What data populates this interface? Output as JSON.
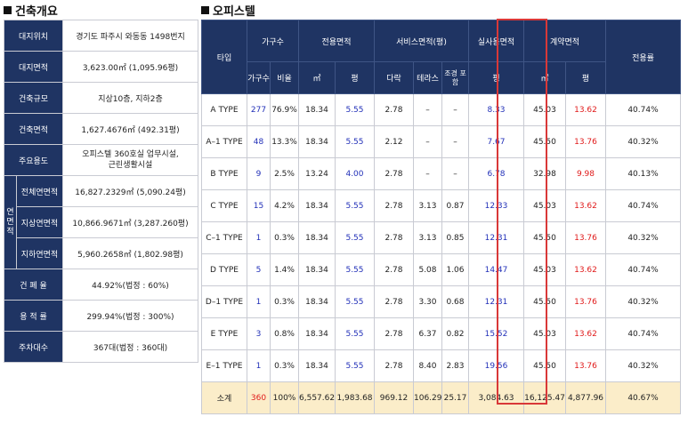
{
  "overview": {
    "title": "건축개요",
    "rows": [
      {
        "label": "대지위치",
        "value": "경기도 파주시 와동동 1498번지"
      },
      {
        "label": "대지면적",
        "value": "3,623.00㎡ (1,095.96평)"
      },
      {
        "label": "건축규모",
        "value": "지상10층, 지하2층"
      },
      {
        "label": "건축면적",
        "value": "1,627.4676㎡ (492.31평)"
      },
      {
        "label": "주요용도",
        "value": "오피스텔 360호실 업무시설, 근린생활시설"
      }
    ],
    "area_group_label": "연면적",
    "area_rows": [
      {
        "label": "전체연면적",
        "value": "16,827.2329㎡ (5,090.24평)"
      },
      {
        "label": "지상연면적",
        "value": "10,866.9671㎡ (3,287.260평)"
      },
      {
        "label": "지하연면적",
        "value": "5,960.2658㎡ (1,802.98평)"
      }
    ],
    "bottom_rows": [
      {
        "label": "건 폐 율",
        "value": "44.92%(법정 : 60%)"
      },
      {
        "label": "용 적 률",
        "value": "299.94%(법정 : 300%)"
      },
      {
        "label": "주차대수",
        "value": "367대(법정 : 360대)"
      }
    ]
  },
  "officetel": {
    "title": "오피스텔",
    "headers": {
      "type": "타입",
      "units": "가구수",
      "exclusive_area": "전용면적",
      "service_area": "서비스면적(평)",
      "actual_area": "실사용면적",
      "contract_area": "계약면적",
      "exclusive_ratio": "전용률",
      "sub": {
        "count": "가구수",
        "ratio": "비율",
        "sqm": "㎡",
        "pyeong": "평",
        "attic": "다락",
        "terrace": "테라스",
        "landscape": "조경 포함",
        "actual_pyeong": "평",
        "contract_sqm": "㎡",
        "contract_pyeong": "평"
      }
    },
    "rows": [
      {
        "type": "A TYPE",
        "count": "277",
        "ratio": "76.9%",
        "sqm": "18.34",
        "pyeong": "5.55",
        "attic": "2.78",
        "terrace": "–",
        "landscape": "–",
        "actual": "8.33",
        "c_sqm": "45.03",
        "c_pyeong": "13.62",
        "er": "40.74%"
      },
      {
        "type": "A–1 TYPE",
        "count": "48",
        "ratio": "13.3%",
        "sqm": "18.34",
        "pyeong": "5.55",
        "attic": "2.12",
        "terrace": "–",
        "landscape": "–",
        "actual": "7.67",
        "c_sqm": "45.50",
        "c_pyeong": "13.76",
        "er": "40.32%"
      },
      {
        "type": "B TYPE",
        "count": "9",
        "ratio": "2.5%",
        "sqm": "13.24",
        "pyeong": "4.00",
        "attic": "2.78",
        "terrace": "–",
        "landscape": "–",
        "actual": "6.78",
        "c_sqm": "32.98",
        "c_pyeong": "9.98",
        "er": "40.13%"
      },
      {
        "type": "C TYPE",
        "count": "15",
        "ratio": "4.2%",
        "sqm": "18.34",
        "pyeong": "5.55",
        "attic": "2.78",
        "terrace": "3.13",
        "landscape": "0.87",
        "actual": "12.33",
        "c_sqm": "45.03",
        "c_pyeong": "13.62",
        "er": "40.74%"
      },
      {
        "type": "C–1 TYPE",
        "count": "1",
        "ratio": "0.3%",
        "sqm": "18.34",
        "pyeong": "5.55",
        "attic": "2.78",
        "terrace": "3.13",
        "landscape": "0.85",
        "actual": "12.31",
        "c_sqm": "45.50",
        "c_pyeong": "13.76",
        "er": "40.32%"
      },
      {
        "type": "D TYPE",
        "count": "5",
        "ratio": "1.4%",
        "sqm": "18.34",
        "pyeong": "5.55",
        "attic": "2.78",
        "terrace": "5.08",
        "landscape": "1.06",
        "actual": "14.47",
        "c_sqm": "45.03",
        "c_pyeong": "13.62",
        "er": "40.74%"
      },
      {
        "type": "D–1 TYPE",
        "count": "1",
        "ratio": "0.3%",
        "sqm": "18.34",
        "pyeong": "5.55",
        "attic": "2.78",
        "terrace": "3.30",
        "landscape": "0.68",
        "actual": "12.31",
        "c_sqm": "45.50",
        "c_pyeong": "13.76",
        "er": "40.32%"
      },
      {
        "type": "E TYPE",
        "count": "3",
        "ratio": "0.8%",
        "sqm": "18.34",
        "pyeong": "5.55",
        "attic": "2.78",
        "terrace": "6.37",
        "landscape": "0.82",
        "actual": "15.52",
        "c_sqm": "45.03",
        "c_pyeong": "13.62",
        "er": "40.74%"
      },
      {
        "type": "E–1 TYPE",
        "count": "1",
        "ratio": "0.3%",
        "sqm": "18.34",
        "pyeong": "5.55",
        "attic": "2.78",
        "terrace": "8.40",
        "landscape": "2.83",
        "actual": "19.56",
        "c_sqm": "45.50",
        "c_pyeong": "13.76",
        "er": "40.32%"
      }
    ],
    "total": {
      "type": "소계",
      "count": "360",
      "ratio": "100%",
      "sqm": "6,557.62",
      "pyeong": "1,983.68",
      "attic": "969.12",
      "terrace": "106.29",
      "landscape": "25.17",
      "actual": "3,084.63",
      "c_sqm": "16,125.47",
      "c_pyeong": "4,877.96",
      "er": "40.67%"
    },
    "colors": {
      "header": "#1f3463",
      "blue_value": "#2230b8",
      "red_value": "#e01a1a",
      "total_row": "#fbedc9",
      "highlight_border": "#d93838"
    }
  }
}
